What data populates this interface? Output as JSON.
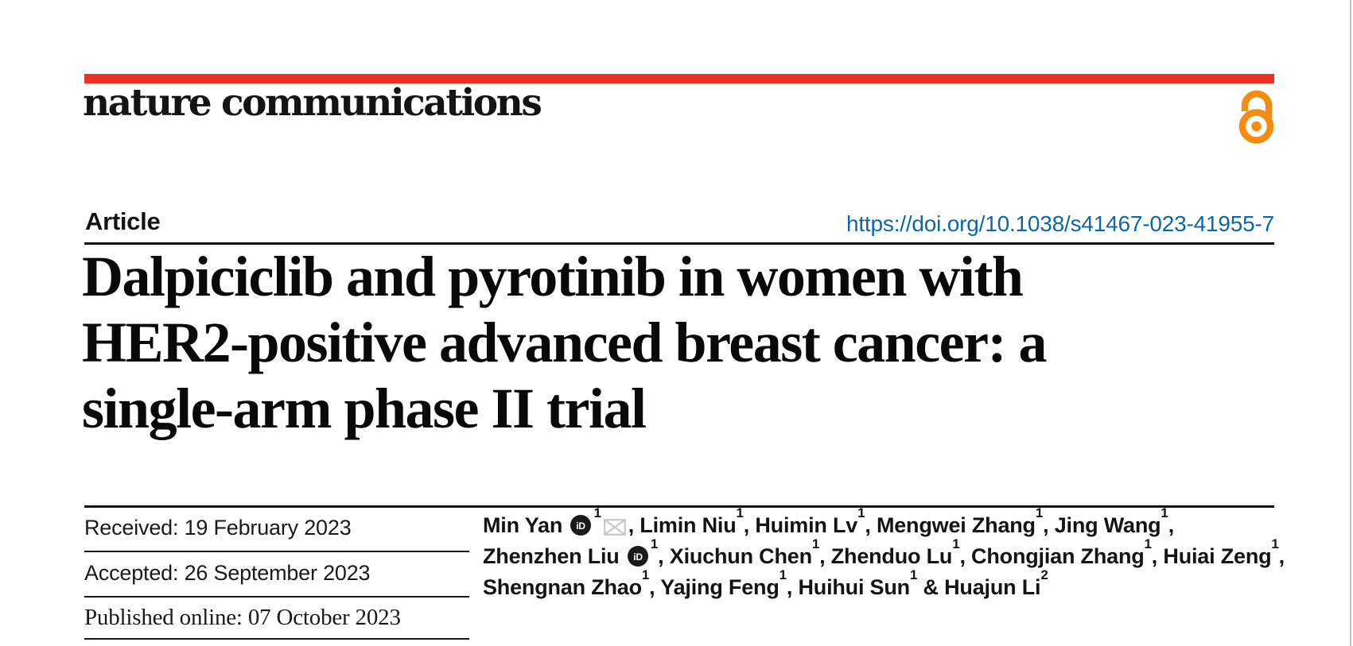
{
  "brand": {
    "journal_name": "nature communications",
    "accent_red": "#e63323",
    "open_access_color": "#f28d11",
    "open_access_icon": "open-access-lock-icon"
  },
  "article": {
    "type_label": "Article",
    "doi_url": "https://doi.org/10.1038/s41467-023-41955-7",
    "doi_color": "#0c67a7"
  },
  "title": {
    "lines": [
      "Dalpiciclib and pyrotinib in women with",
      "HER2-positive advanced breast cancer: a",
      "single-arm phase II trial"
    ]
  },
  "dates": {
    "received": "Received: 19 February 2023",
    "accepted": "Accepted: 26 September 2023",
    "published": "Published online: 07 October 2023"
  },
  "authors": {
    "lines": [
      [
        {
          "t": "Min Yan "
        },
        {
          "icon": "orcid"
        },
        {
          "sup": "1"
        },
        {
          "icon": "envelope"
        },
        {
          "t": ", Limin Niu"
        },
        {
          "sup": "1"
        },
        {
          "t": ", Huimin Lv"
        },
        {
          "sup": "1"
        },
        {
          "t": ", Mengwei Zhang"
        },
        {
          "sup": "1"
        },
        {
          "t": ", Jing Wang"
        },
        {
          "sup": "1"
        },
        {
          "t": ","
        }
      ],
      [
        {
          "t": "Zhenzhen Liu "
        },
        {
          "icon": "orcid"
        },
        {
          "sup": "1"
        },
        {
          "t": ", Xiuchun Chen"
        },
        {
          "sup": "1"
        },
        {
          "t": ", Zhenduo Lu"
        },
        {
          "sup": "1"
        },
        {
          "t": ", Chongjian Zhang"
        },
        {
          "sup": "1"
        },
        {
          "t": ", Huiai Zeng"
        },
        {
          "sup": "1"
        },
        {
          "t": ","
        }
      ],
      [
        {
          "t": "Shengnan Zhao"
        },
        {
          "sup": "1"
        },
        {
          "t": ", Yajing Feng"
        },
        {
          "sup": "1"
        },
        {
          "t": ", Huihui Sun"
        },
        {
          "sup": "1"
        },
        {
          "t": " & Huajun Li"
        },
        {
          "sup": "2"
        }
      ]
    ]
  }
}
